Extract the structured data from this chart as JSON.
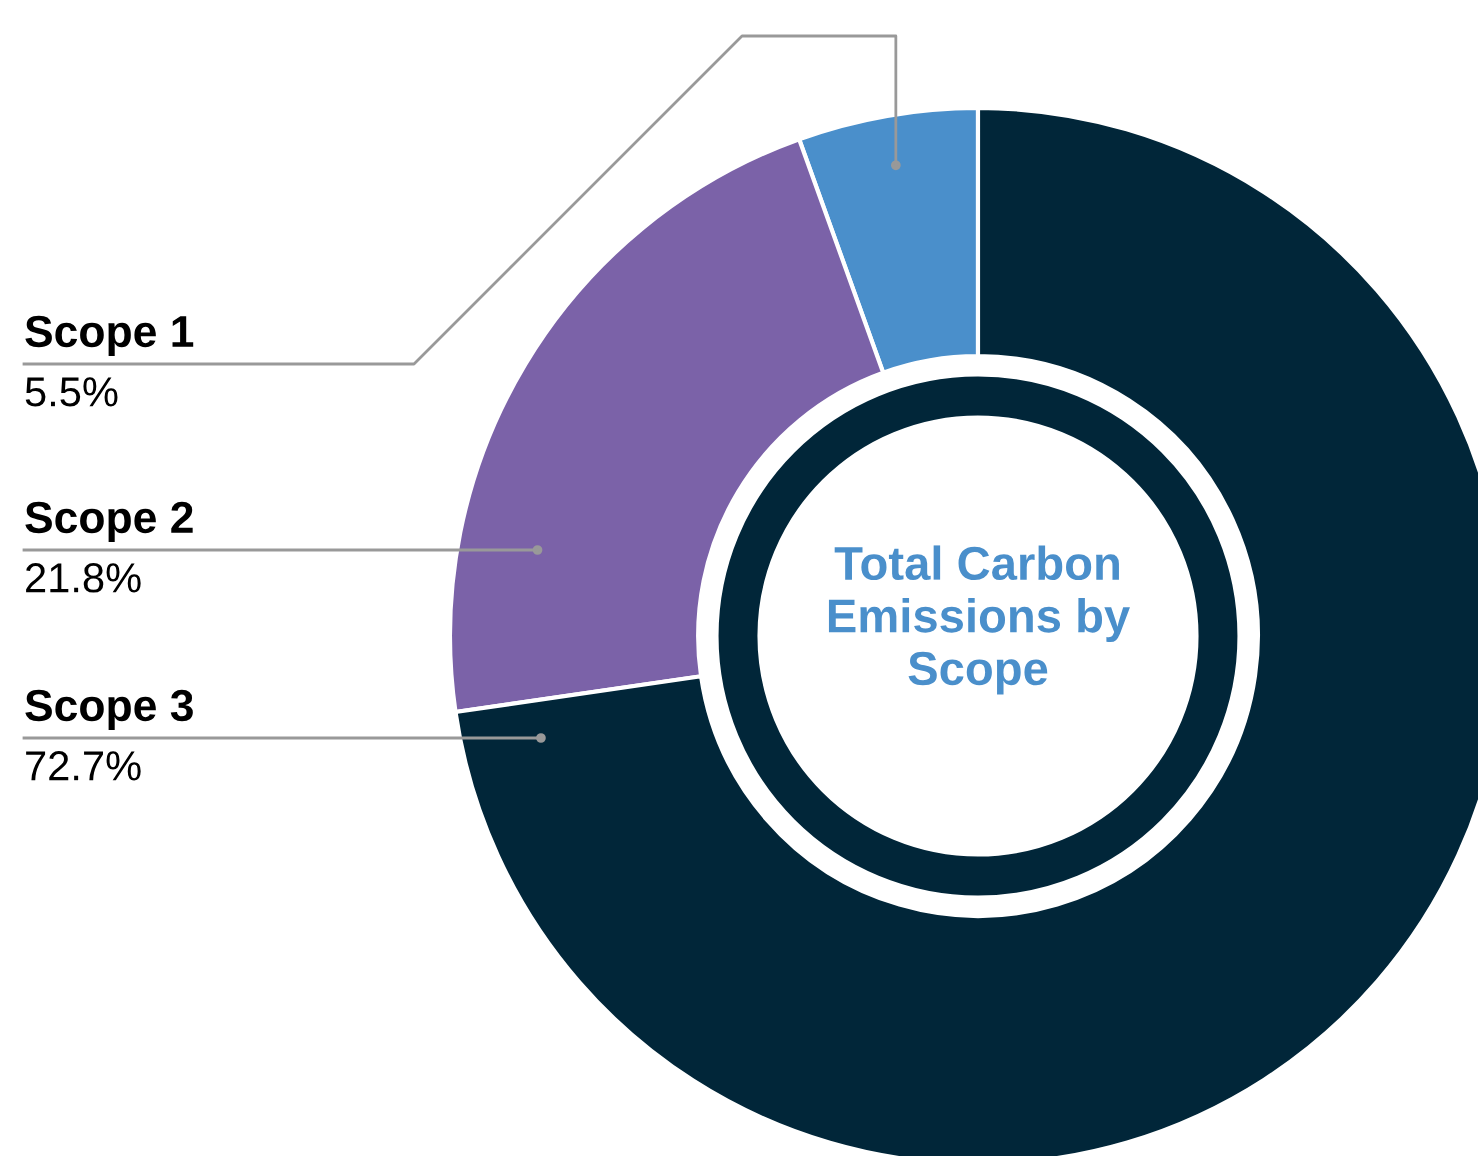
{
  "chart_data": {
    "type": "donut",
    "title": "Total Carbon Emissions by Scope",
    "categories": [
      "Scope 1",
      "Scope 2",
      "Scope 3"
    ],
    "values": [
      5.5,
      21.8,
      72.7
    ],
    "value_labels": [
      "5.5%",
      "21.8%",
      "72.7%"
    ],
    "colors": [
      "#4a8fcb",
      "#7b62a8",
      "#012639"
    ],
    "legend": false
  }
}
